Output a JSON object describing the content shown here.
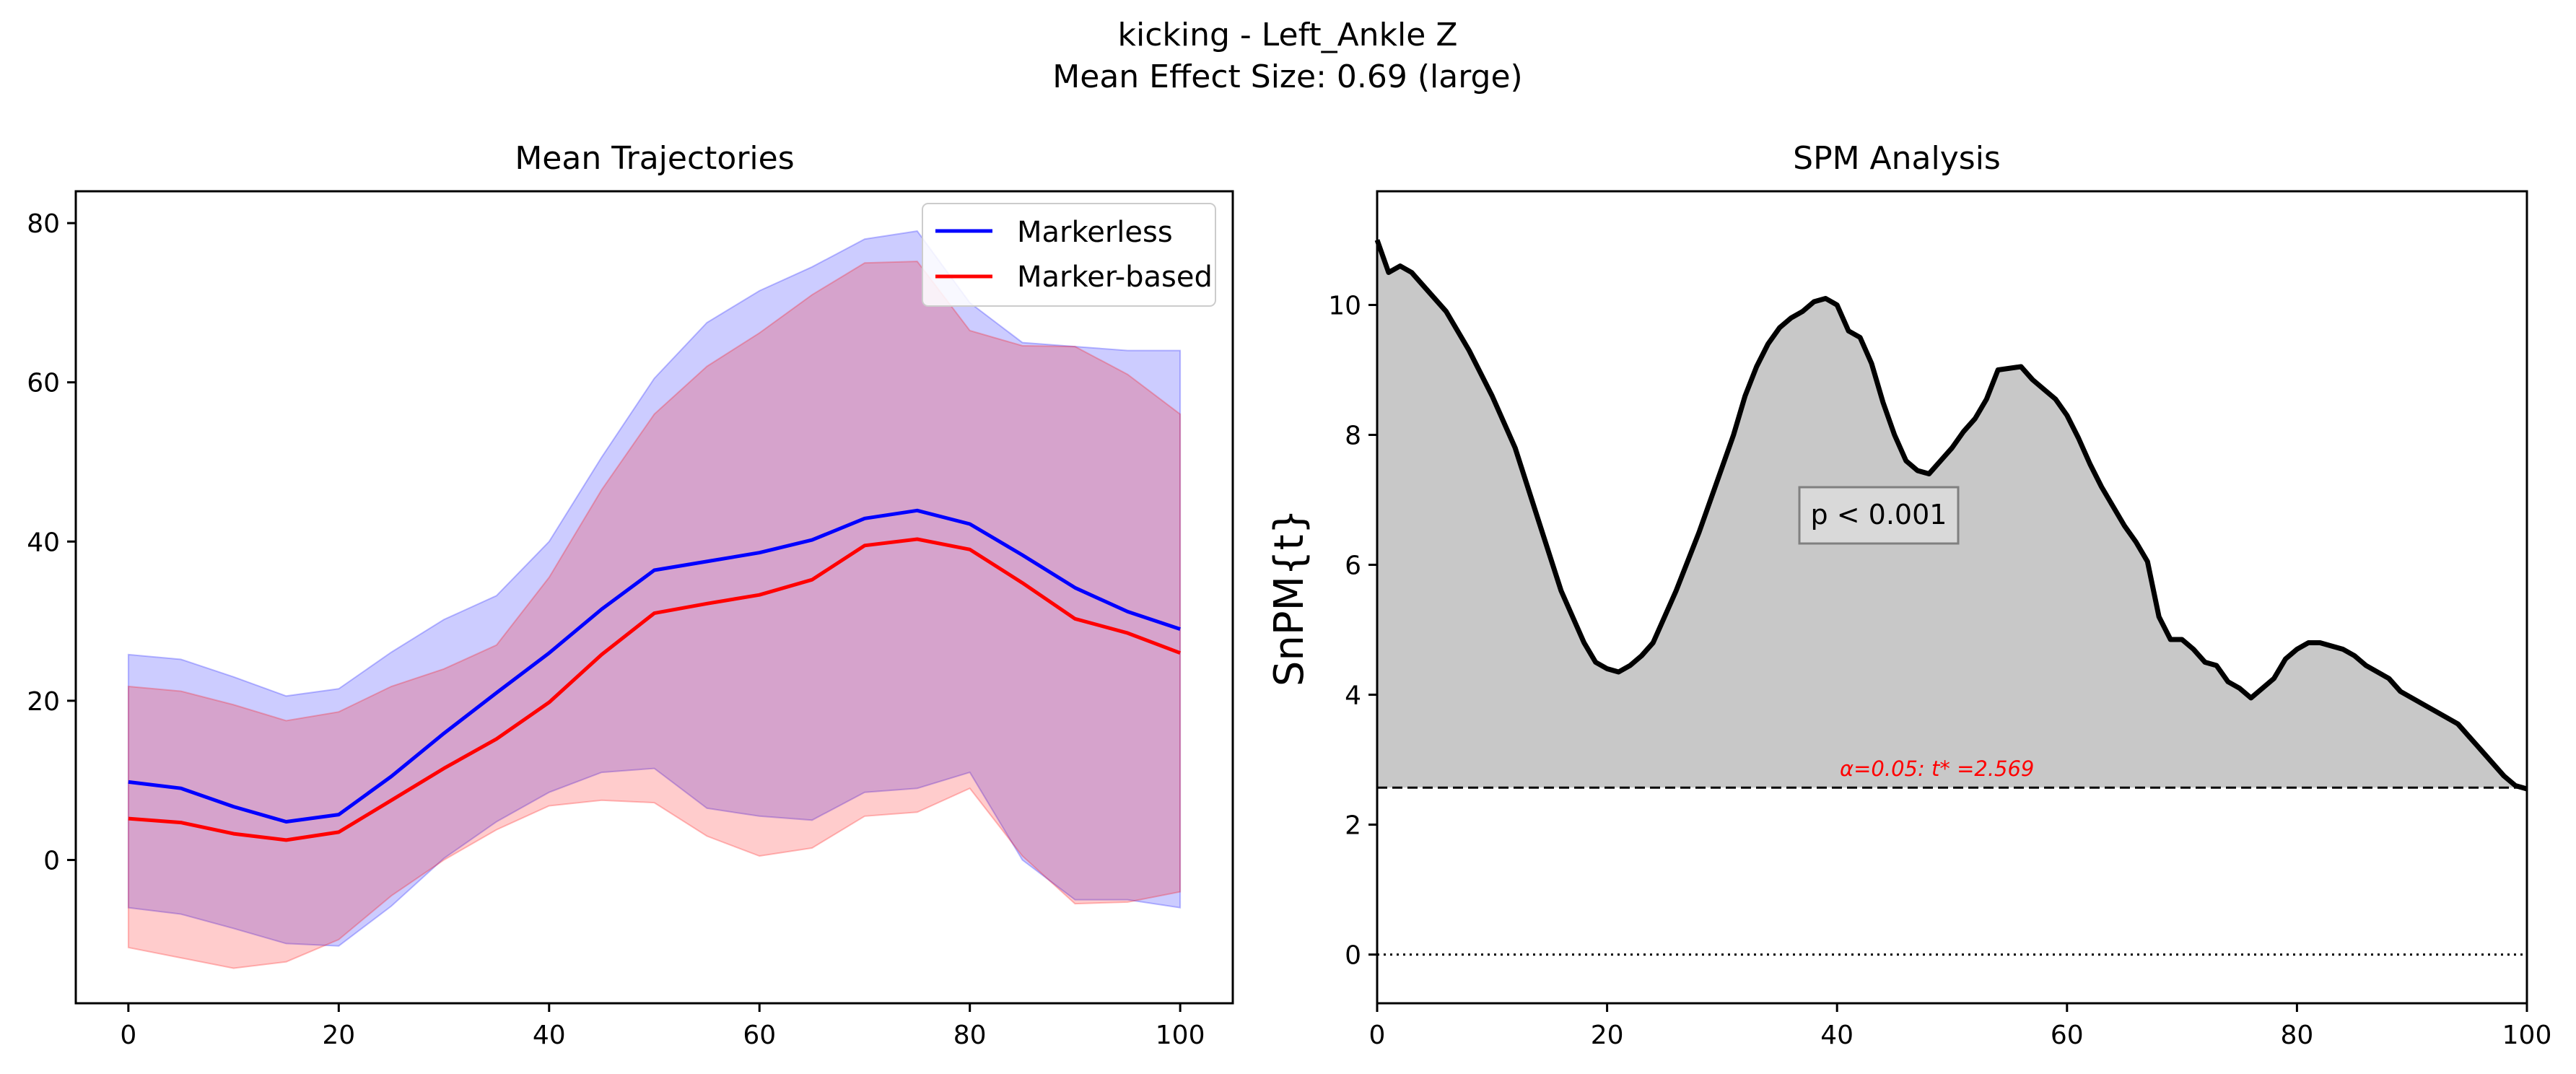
{
  "figure": {
    "suptitle_line1": "kicking - Left_Ankle Z",
    "suptitle_line2": "Mean Effect Size: 0.69 (large)"
  },
  "chart_data": [
    {
      "type": "line",
      "title": "Mean Trajectories",
      "xlabel": "",
      "ylabel": "",
      "xlim": [
        -5,
        105
      ],
      "ylim": [
        -18,
        84
      ],
      "xticks": [
        0,
        20,
        40,
        60,
        80,
        100
      ],
      "yticks": [
        0,
        20,
        40,
        60,
        80
      ],
      "grid": false,
      "legend": "top-right",
      "series": [
        {
          "name": "Markerless",
          "color": "#0000ff",
          "band_color": "#0000ff",
          "x": [
            0,
            5,
            10,
            15,
            20,
            25,
            30,
            35,
            40,
            45,
            50,
            55,
            60,
            65,
            70,
            75,
            80,
            85,
            90,
            95,
            100
          ],
          "mean": [
            9.8,
            9.0,
            6.7,
            4.8,
            5.7,
            10.5,
            15.9,
            21.0,
            26.0,
            31.5,
            36.4,
            37.5,
            38.6,
            40.2,
            42.9,
            43.9,
            42.2,
            38.3,
            34.2,
            31.2,
            29.0
          ],
          "upper": [
            25.8,
            25.2,
            23.0,
            20.6,
            21.5,
            26.1,
            30.2,
            33.2,
            40.0,
            50.6,
            60.5,
            67.5,
            71.5,
            74.5,
            78.0,
            79.0,
            70.0,
            65.0,
            64.5,
            64.0,
            64.0
          ],
          "lower": [
            -6.0,
            -6.8,
            -8.6,
            -10.5,
            -10.8,
            -5.8,
            0.2,
            4.8,
            8.5,
            11.0,
            11.5,
            6.5,
            5.5,
            5.0,
            8.5,
            9.0,
            11.0,
            0.0,
            -5.0,
            -5.0,
            -6.0
          ]
        },
        {
          "name": "Marker-based",
          "color": "#ff0000",
          "band_color": "#ff0000",
          "x": [
            0,
            5,
            10,
            15,
            20,
            25,
            30,
            35,
            40,
            45,
            50,
            55,
            60,
            65,
            70,
            75,
            80,
            85,
            90,
            95,
            100
          ],
          "mean": [
            5.2,
            4.7,
            3.3,
            2.5,
            3.5,
            7.5,
            11.5,
            15.2,
            19.8,
            25.8,
            31.0,
            32.2,
            33.3,
            35.2,
            39.5,
            40.3,
            39.0,
            34.8,
            30.3,
            28.5,
            26.0
          ],
          "upper": [
            21.8,
            21.2,
            19.5,
            17.5,
            18.6,
            21.8,
            24.0,
            27.0,
            35.5,
            46.5,
            56.0,
            62.0,
            66.2,
            71.0,
            75.0,
            75.2,
            66.5,
            64.6,
            64.5,
            61.0,
            56.0
          ],
          "lower": [
            -11.0,
            -12.3,
            -13.6,
            -12.8,
            -10.0,
            -4.5,
            0.0,
            3.8,
            6.8,
            7.5,
            7.2,
            3.0,
            0.5,
            1.5,
            5.5,
            6.0,
            9.0,
            0.5,
            -5.5,
            -5.3,
            -4.0
          ]
        }
      ]
    },
    {
      "type": "area",
      "title": "SPM Analysis",
      "xlabel": "",
      "ylabel": "SnPM{t}",
      "xlim": [
        0,
        100
      ],
      "ylim": [
        -0.75,
        11.75
      ],
      "xticks": [
        0,
        20,
        40,
        60,
        80,
        100
      ],
      "yticks": [
        0,
        2,
        4,
        6,
        8,
        10
      ],
      "grid": false,
      "threshold": 2.569,
      "threshold_label": "α=0.05:  t* =2.569",
      "threshold_color": "#ff0000",
      "zero_line": 0,
      "annotation": "p < 0.001",
      "fill_color": "#c8c8c8",
      "line_color": "#000000",
      "series": [
        {
          "x": [
            0,
            1,
            2,
            3,
            4,
            6,
            8,
            10,
            12,
            14,
            16,
            18,
            19,
            20,
            21,
            22,
            23,
            24,
            26,
            28,
            30,
            31,
            32,
            33,
            34,
            35,
            36,
            37,
            38,
            39,
            40,
            41,
            42,
            43,
            44,
            45,
            46,
            47,
            48,
            50,
            51,
            52,
            53,
            54,
            56,
            57,
            58,
            59,
            60,
            61,
            62,
            63,
            64,
            65,
            66,
            67,
            68,
            69,
            70,
            71,
            72,
            73,
            74,
            75,
            76,
            77,
            78,
            79,
            80,
            81,
            82,
            83,
            84,
            85,
            86,
            87,
            88,
            89,
            90,
            91,
            92,
            93,
            94,
            95,
            96,
            97,
            98,
            99,
            100
          ],
          "y": [
            11.0,
            10.5,
            10.6,
            10.5,
            10.3,
            9.9,
            9.3,
            8.6,
            7.8,
            6.7,
            5.6,
            4.8,
            4.5,
            4.4,
            4.35,
            4.45,
            4.6,
            4.8,
            5.6,
            6.5,
            7.5,
            8.0,
            8.6,
            9.05,
            9.4,
            9.65,
            9.8,
            9.9,
            10.05,
            10.1,
            10.0,
            9.6,
            9.5,
            9.1,
            8.5,
            8.0,
            7.6,
            7.45,
            7.4,
            7.8,
            8.05,
            8.25,
            8.55,
            9.0,
            9.05,
            8.85,
            8.7,
            8.55,
            8.3,
            7.95,
            7.55,
            7.2,
            6.9,
            6.6,
            6.35,
            6.05,
            5.2,
            4.85,
            4.85,
            4.7,
            4.5,
            4.45,
            4.2,
            4.1,
            3.95,
            4.1,
            4.25,
            4.55,
            4.7,
            4.8,
            4.8,
            4.75,
            4.7,
            4.6,
            4.45,
            4.35,
            4.25,
            4.05,
            3.95,
            3.85,
            3.75,
            3.65,
            3.55,
            3.35,
            3.15,
            2.95,
            2.75,
            2.6,
            2.55
          ]
        }
      ]
    }
  ]
}
